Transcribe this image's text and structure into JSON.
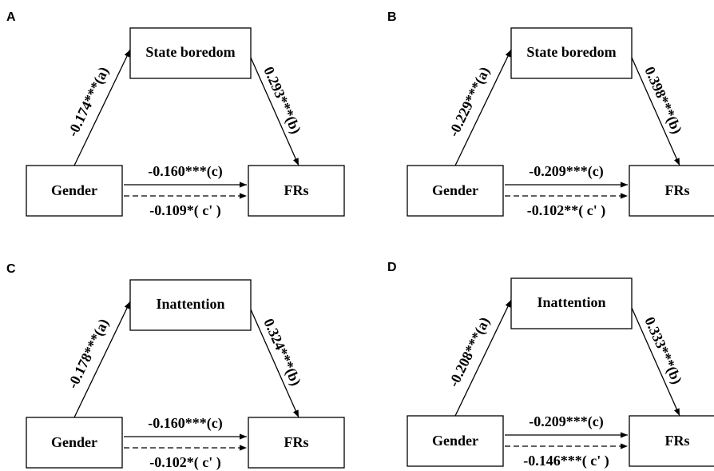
{
  "panels": [
    {
      "letter": "A",
      "mediator": "State boredom",
      "x": "Gender",
      "y": "FRs",
      "a": "-0.174***(a)",
      "b": "0.293***(b)",
      "c": "-0.160***(c)",
      "c_prime": "-0.109*( c' )"
    },
    {
      "letter": "B",
      "mediator": "State boredom",
      "x": "Gender",
      "y": "FRs",
      "a": "-0.229***(a)",
      "b": "0.398***(b)",
      "c": "-0.209***(c)",
      "c_prime": "-0.102**( c' )"
    },
    {
      "letter": "C",
      "mediator": "Inattention",
      "x": "Gender",
      "y": "FRs",
      "a": "-0.178***(a)",
      "b": "0.324***(b)",
      "c": "-0.160***(c)",
      "c_prime": "-0.102*( c' )"
    },
    {
      "letter": "D",
      "mediator": "Inattention",
      "x": "Gender",
      "y": "FRs",
      "a": "-0.208***(a)",
      "b": "0.333***(b)",
      "c": "-0.209***(c)",
      "c_prime": "-0.146***( c' )"
    }
  ]
}
